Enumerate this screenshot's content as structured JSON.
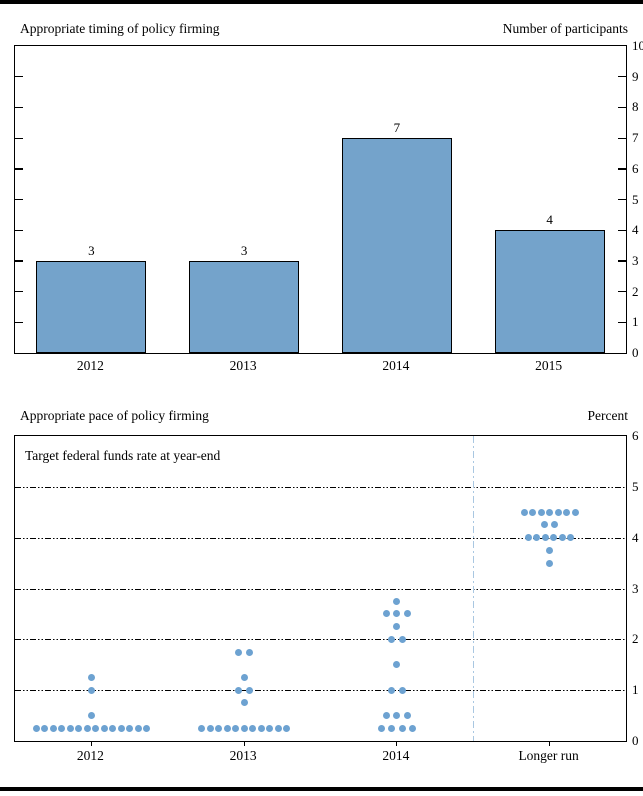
{
  "chart_data": [
    {
      "type": "bar",
      "title": "Appropriate timing of policy firming",
      "unit_label": "Number of participants",
      "categories": [
        "2012",
        "2013",
        "2014",
        "2015"
      ],
      "values": [
        3,
        3,
        7,
        4
      ],
      "ylim": [
        0,
        10
      ],
      "ytick_step": 1,
      "grid": "off",
      "bar_color": "#74a3cb",
      "bar_border_color": "#000000"
    },
    {
      "type": "scatter",
      "title": "Appropriate pace of policy firming",
      "unit_label": "Percent",
      "annotation": "Target federal funds rate at year-end",
      "ylim": [
        0,
        6
      ],
      "gridlines": [
        1,
        2,
        3,
        4,
        5
      ],
      "gridline_style": "dash-dot",
      "dot_color": "#6da2d1",
      "separator_color": "#a9c7e1",
      "separator_after_column_index": 2,
      "columns": [
        {
          "label": "2012",
          "points": [
            {
              "rate": 0.25,
              "count": 14
            },
            {
              "rate": 0.5,
              "count": 1
            },
            {
              "rate": 1.0,
              "count": 1
            },
            {
              "rate": 1.25,
              "count": 1
            }
          ]
        },
        {
          "label": "2013",
          "points": [
            {
              "rate": 0.25,
              "count": 11
            },
            {
              "rate": 0.75,
              "count": 1
            },
            {
              "rate": 1.0,
              "count": 2
            },
            {
              "rate": 1.25,
              "count": 1
            },
            {
              "rate": 1.75,
              "count": 2
            }
          ]
        },
        {
          "label": "2014",
          "points": [
            {
              "rate": 0.25,
              "count": 4
            },
            {
              "rate": 0.5,
              "count": 3
            },
            {
              "rate": 1.0,
              "count": 2
            },
            {
              "rate": 1.5,
              "count": 1
            },
            {
              "rate": 2.0,
              "count": 2
            },
            {
              "rate": 2.25,
              "count": 1
            },
            {
              "rate": 2.5,
              "count": 3
            },
            {
              "rate": 2.75,
              "count": 1
            }
          ]
        },
        {
          "label": "Longer run",
          "points": [
            {
              "rate": 3.5,
              "count": 1
            },
            {
              "rate": 3.75,
              "count": 1
            },
            {
              "rate": 4.0,
              "count": 6
            },
            {
              "rate": 4.25,
              "count": 2
            },
            {
              "rate": 4.5,
              "count": 7
            }
          ]
        }
      ]
    }
  ]
}
